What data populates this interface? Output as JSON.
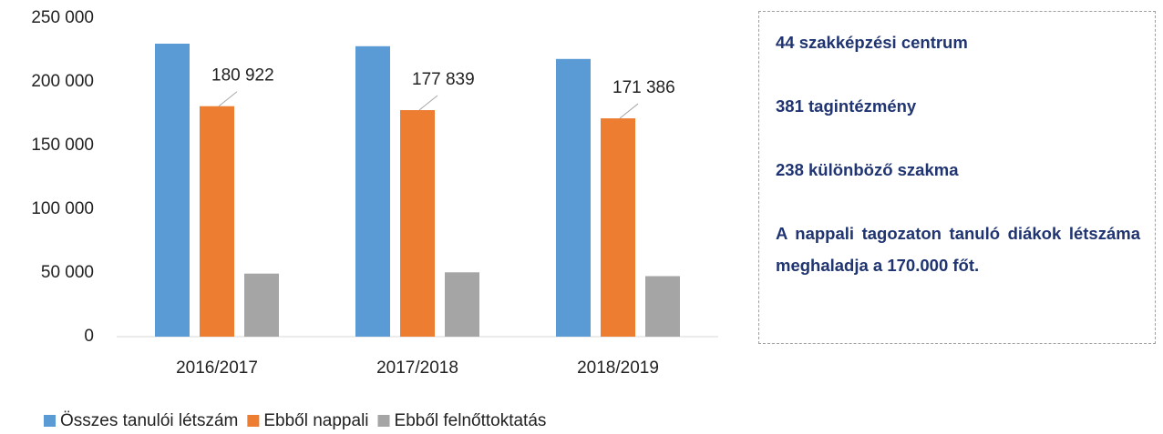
{
  "chart_data": {
    "type": "bar",
    "categories": [
      "2016/2017",
      "2017/2018",
      "2018/2019"
    ],
    "series": [
      {
        "name": "Összes tanulói létszám",
        "color": "#5b9bd5",
        "values": [
          230000,
          228000,
          218000
        ]
      },
      {
        "name": "Ebből nappali",
        "color": "#ed7d31",
        "values": [
          180922,
          177839,
          171386
        ],
        "value_labels": [
          "180 922",
          "177 839",
          "171 386"
        ]
      },
      {
        "name": "Ebből felnőttoktatás",
        "color": "#a5a5a5",
        "values": [
          49500,
          50500,
          47500
        ]
      }
    ],
    "ylim": [
      0,
      250000
    ],
    "yticks": [
      0,
      {
        "value": 50000,
        "label": "50 000"
      },
      {
        "value": 100000,
        "label": "100 000"
      },
      {
        "value": 150000,
        "label": "150 000"
      },
      {
        "value": 200000,
        "label": "200 000"
      },
      {
        "value": 250000,
        "label": "250 000"
      }
    ],
    "grid": false,
    "legend": "bottom"
  },
  "text_box": {
    "lines": [
      "44 szakképzési centrum",
      "381 tagintézmény",
      "238 különböző szakma",
      "A nappali tagozaton tanuló diákok létszáma meghaladja a 170.000 főt."
    ]
  }
}
